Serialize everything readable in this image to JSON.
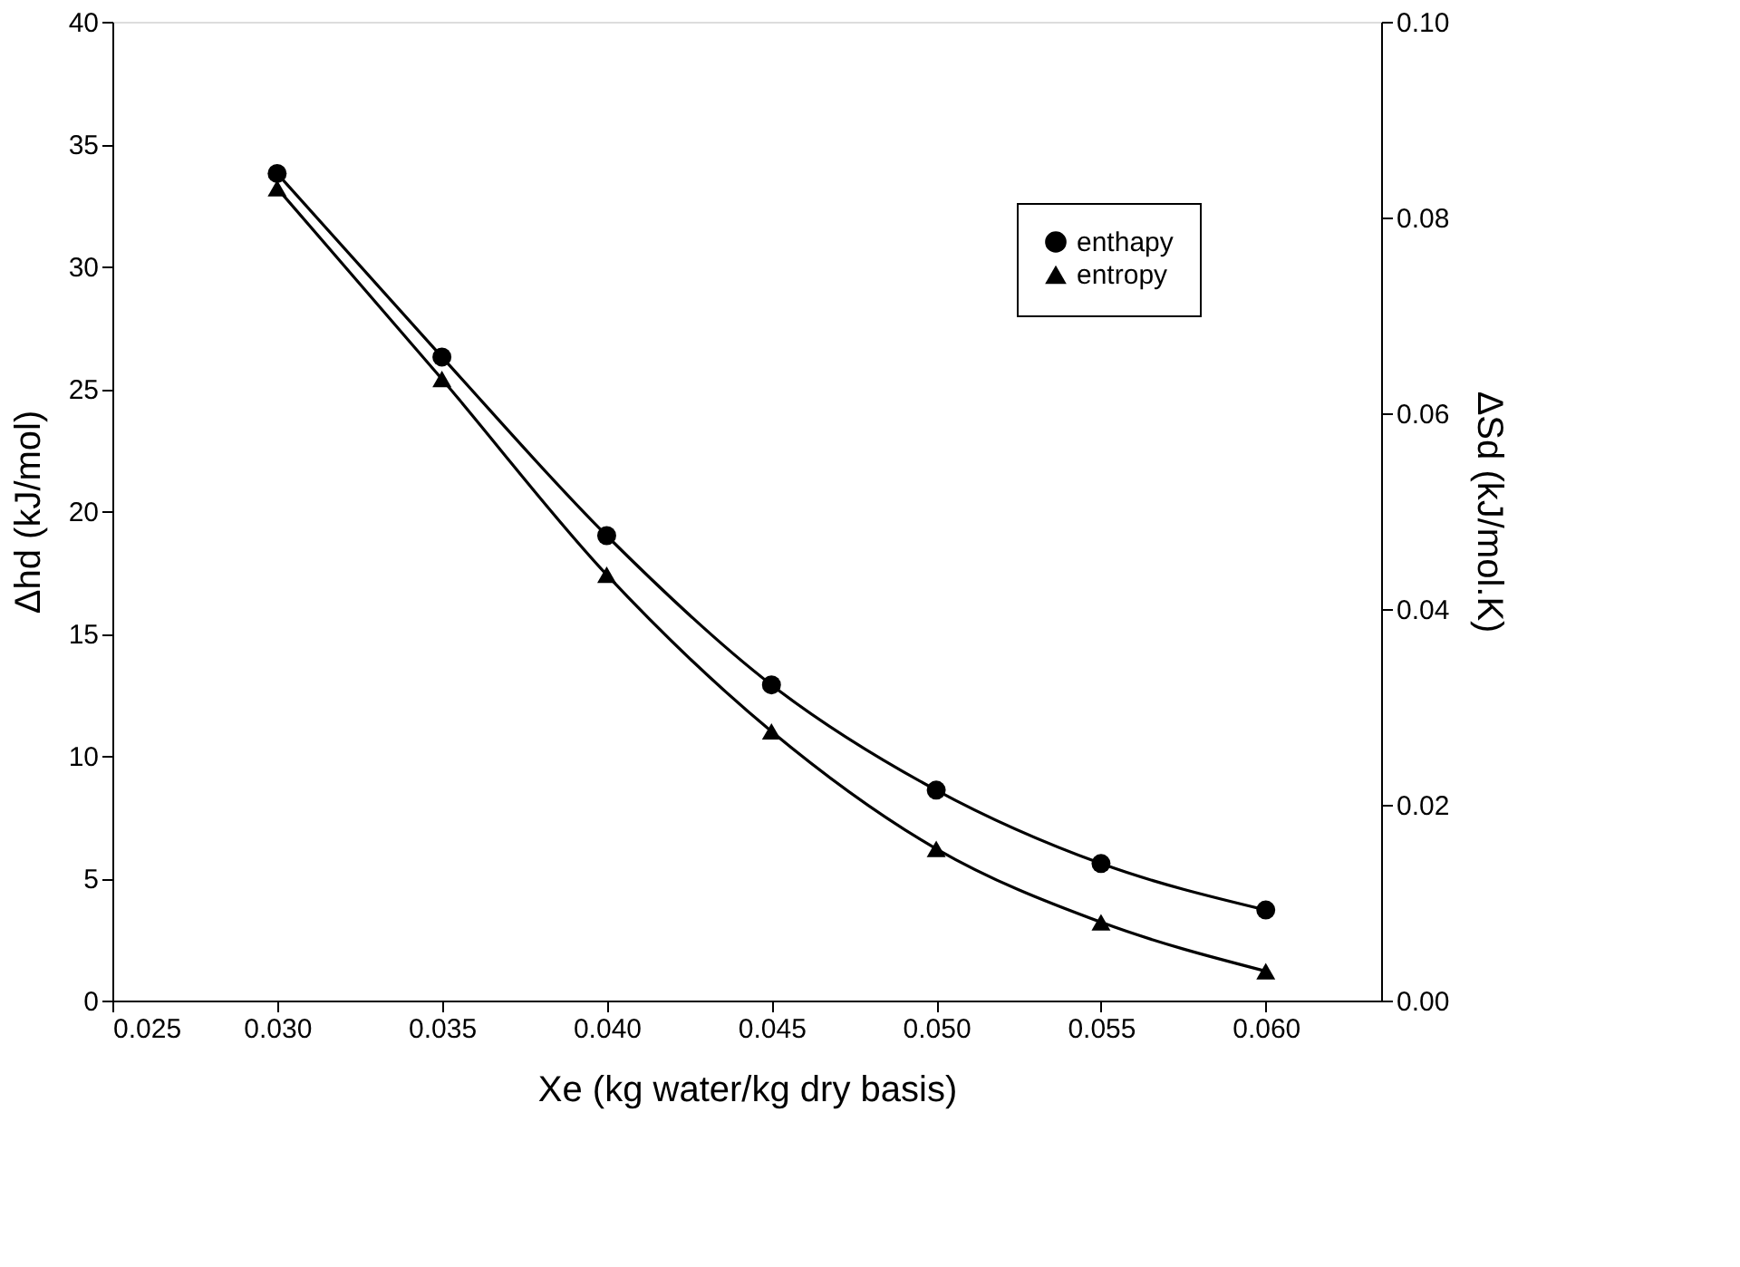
{
  "chart_data": {
    "type": "line",
    "xlabel": "Xe (kg water/kg dry basis)",
    "ylabel": "Δhd (kJ/mol)",
    "y2label": "ΔSd (kJ/mol.K)",
    "x": [
      0.03,
      0.035,
      0.04,
      0.045,
      0.05,
      0.055,
      0.06
    ],
    "series": [
      {
        "name": "enthapy",
        "color": "#000000",
        "marker": "circle",
        "values": [
          33.8,
          26.3,
          19.0,
          12.9,
          8.6,
          5.6,
          3.7
        ]
      },
      {
        "name": "entropy",
        "color": "#000000",
        "marker": "triangle",
        "axis": "y2",
        "values": [
          0.083,
          0.0635,
          0.0435,
          0.0275,
          0.0155,
          0.008,
          0.003
        ]
      }
    ],
    "xlim": [
      0.025,
      0.0635
    ],
    "xticks": [
      {
        "value": 0.025,
        "label": "0.025"
      },
      {
        "value": 0.03,
        "label": "0.030"
      },
      {
        "value": 0.035,
        "label": "0.035"
      },
      {
        "value": 0.04,
        "label": "0.040"
      },
      {
        "value": 0.045,
        "label": "0.045"
      },
      {
        "value": 0.05,
        "label": "0.050"
      },
      {
        "value": 0.055,
        "label": "0.055"
      },
      {
        "value": 0.06,
        "label": "0.060"
      }
    ],
    "ylim": [
      0,
      40
    ],
    "yticks": [
      0,
      5,
      10,
      15,
      20,
      25,
      30,
      35,
      40
    ],
    "y2lim": [
      0,
      0.1
    ],
    "y2ticks": [
      {
        "value": 0,
        "label": "0.00"
      },
      {
        "value": 0.02,
        "label": "0.02"
      },
      {
        "value": 0.04,
        "label": "0.04"
      },
      {
        "value": 0.06,
        "label": "0.06"
      },
      {
        "value": 0.08,
        "label": "0.08"
      },
      {
        "value": 0.1,
        "label": "0.10"
      }
    ],
    "legend": "top right",
    "grid": false,
    "line_style": "solid"
  }
}
